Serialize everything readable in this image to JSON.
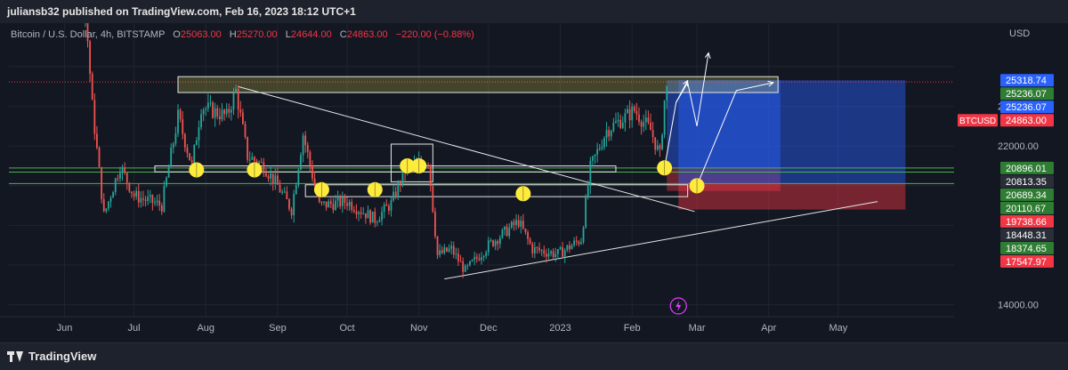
{
  "header": {
    "published_by": "juliansb32 published on TradingView.com, Feb 16, 2023 18:12 UTC+1"
  },
  "legend": {
    "symbol": "Bitcoin / U.S. Dollar, 4h, BITSTAMP",
    "open_label": "O",
    "open": "25063.00",
    "high_label": "H",
    "high": "25270.00",
    "low_label": "L",
    "low": "24644.00",
    "close_label": "C",
    "close": "24863.00",
    "change": "−220.00 (−0.88%)"
  },
  "footer": {
    "brand": "TradingView"
  },
  "chart_data": {
    "type": "line",
    "title": "Bitcoin / U.S. Dollar, 4h, BITSTAMP",
    "y_axis_label": "USD",
    "ylim": [
      13400,
      28200
    ],
    "y_ticks": [
      {
        "value": 14000,
        "label": "14000.00"
      },
      {
        "value": 22000,
        "label": "22000.00"
      },
      {
        "value": 24000,
        "label": "24000.00"
      }
    ],
    "x_ticks": [
      {
        "date": "2022-06-01",
        "label": "Jun"
      },
      {
        "date": "2022-07-01",
        "label": "Jul"
      },
      {
        "date": "2022-08-01",
        "label": "Aug"
      },
      {
        "date": "2022-09-01",
        "label": "Sep"
      },
      {
        "date": "2022-10-01",
        "label": "Oct"
      },
      {
        "date": "2022-11-01",
        "label": "Nov"
      },
      {
        "date": "2022-12-01",
        "label": "Dec"
      },
      {
        "date": "2023-01-01",
        "label": "2023"
      },
      {
        "date": "2023-02-01",
        "label": "Feb"
      },
      {
        "date": "2023-03-01",
        "label": "Mar"
      },
      {
        "date": "2023-04-01",
        "label": "Apr"
      },
      {
        "date": "2023-05-01",
        "label": "May"
      }
    ],
    "x_range": [
      "2022-05-08",
      "2023-06-20"
    ],
    "price_series": {
      "name": "BTCUSD",
      "points": [
        [
          "2022-05-10",
          31000
        ],
        [
          "2022-05-20",
          29500
        ],
        [
          "2022-06-01",
          29800
        ],
        [
          "2022-06-10",
          29000
        ],
        [
          "2022-06-13",
          24000
        ],
        [
          "2022-06-18",
          18500
        ],
        [
          "2022-06-25",
          21000
        ],
        [
          "2022-07-01",
          19500
        ],
        [
          "2022-07-13",
          19000
        ],
        [
          "2022-07-20",
          23500
        ],
        [
          "2022-07-26",
          21000
        ],
        [
          "2022-07-30",
          24000
        ],
        [
          "2022-08-10",
          23500
        ],
        [
          "2022-08-14",
          24800
        ],
        [
          "2022-08-19",
          21500
        ],
        [
          "2022-08-26",
          21000
        ],
        [
          "2022-09-01",
          20000
        ],
        [
          "2022-09-07",
          18800
        ],
        [
          "2022-09-12",
          22600
        ],
        [
          "2022-09-19",
          19000
        ],
        [
          "2022-10-01",
          19200
        ],
        [
          "2022-10-13",
          18300
        ],
        [
          "2022-10-20",
          19100
        ],
        [
          "2022-10-26",
          20800
        ],
        [
          "2022-11-05",
          21300
        ],
        [
          "2022-11-09",
          16500
        ],
        [
          "2022-11-15",
          16800
        ],
        [
          "2022-11-21",
          15700
        ],
        [
          "2022-12-01",
          17000
        ],
        [
          "2022-12-14",
          18200
        ],
        [
          "2022-12-20",
          16800
        ],
        [
          "2022-12-31",
          16550
        ],
        [
          "2023-01-10",
          17300
        ],
        [
          "2023-01-14",
          20900
        ],
        [
          "2023-01-21",
          22800
        ],
        [
          "2023-02-02",
          23800
        ],
        [
          "2023-02-09",
          22800
        ],
        [
          "2023-02-13",
          21500
        ],
        [
          "2023-02-15",
          24300
        ],
        [
          "2023-02-16",
          24863
        ]
      ]
    },
    "horizontal_levels": [
      {
        "value": 25236.07,
        "color": "#f23645",
        "style": "dotted"
      },
      {
        "value": 20896.01,
        "color": "#4caf50"
      },
      {
        "value": 20689.34,
        "color": "#4caf50"
      },
      {
        "value": 20110.67,
        "color": "#4caf50"
      }
    ],
    "price_labels": [
      {
        "value": 25318.74,
        "label": "25318.74",
        "color": "#2962ff"
      },
      {
        "value": 25236.07,
        "label": "25236.07",
        "color": "#2e7d32"
      },
      {
        "value": 25236.07,
        "label": "25236.07",
        "color": "#2962ff"
      },
      {
        "value": 24863.0,
        "label": "24863.00",
        "color": "#f23645",
        "tag": "BTCUSD"
      },
      {
        "value": 20896.01,
        "label": "20896.01",
        "color": "#2e7d32"
      },
      {
        "value": 20813.35,
        "label": "20813.35",
        "color": "#2a2e39"
      },
      {
        "value": 20689.34,
        "label": "20689.34",
        "color": "#2e7d32"
      },
      {
        "value": 20110.67,
        "label": "20110.67",
        "color": "#2e7d32"
      },
      {
        "value": 19738.66,
        "label": "19738.66",
        "color": "#f23645"
      },
      {
        "value": 18448.31,
        "label": "18448.31",
        "color": "#2a2e39"
      },
      {
        "value": 18374.65,
        "label": "18374.65",
        "color": "#2e7d32"
      },
      {
        "value": 17547.97,
        "label": "17547.97",
        "color": "#f23645"
      }
    ],
    "annotations": {
      "zones": [
        {
          "from": "2022-07-20",
          "to": "2023-04-05",
          "low": 24700,
          "high": 25500,
          "fill": "rgba(190,190,70,0.28)",
          "stroke": "#e6e6e6"
        },
        {
          "from": "2022-07-10",
          "to": "2023-01-25",
          "low": 20700,
          "high": 21000,
          "fill": "none",
          "stroke": "#e6e6e6"
        },
        {
          "from": "2022-10-20",
          "to": "2022-11-07",
          "low": 20200,
          "high": 22100,
          "fill": "none",
          "stroke": "#e6e6e6"
        },
        {
          "from": "2022-09-13",
          "to": "2023-02-25",
          "low": 19450,
          "high": 20050,
          "fill": "none",
          "stroke": "#e6e6e6"
        }
      ],
      "position_boxes": [
        {
          "from": "2023-02-16",
          "to": "2023-04-06",
          "low": 20896.01,
          "high": 25318.74,
          "fill": "rgba(41,98,255,0.45)"
        },
        {
          "from": "2023-02-16",
          "to": "2023-04-06",
          "low": 19738.66,
          "high": 20896.01,
          "fill": "rgba(242,54,69,0.40)"
        },
        {
          "from": "2023-02-21",
          "to": "2023-05-30",
          "low": 20110.67,
          "high": 25318.74,
          "fill": "rgba(41,98,255,0.45)"
        },
        {
          "from": "2023-02-21",
          "to": "2023-05-30",
          "low": 18800,
          "high": 20110.67,
          "fill": "rgba(242,54,69,0.45)"
        }
      ],
      "trend_lines": [
        {
          "from": [
            "2022-08-15",
            25000
          ],
          "to": [
            "2023-02-28",
            18700
          ]
        },
        {
          "from": [
            "2022-11-12",
            15300
          ],
          "to": [
            "2023-05-18",
            19200
          ]
        }
      ],
      "markers": [
        {
          "date": "2022-07-28",
          "value": 20800
        },
        {
          "date": "2022-08-22",
          "value": 20800
        },
        {
          "date": "2022-09-20",
          "value": 19800
        },
        {
          "date": "2022-10-13",
          "value": 19800
        },
        {
          "date": "2022-10-27",
          "value": 21000
        },
        {
          "date": "2022-11-01",
          "value": 21000
        },
        {
          "date": "2022-12-16",
          "value": 19600
        },
        {
          "date": "2023-02-15",
          "value": 20900
        },
        {
          "date": "2023-03-01",
          "value": 20000
        }
      ],
      "arrows": [
        [
          [
            "2023-02-15",
            20900
          ],
          [
            "2023-02-20",
            24200
          ],
          [
            "2023-02-25",
            25300
          ]
        ],
        [
          [
            "2023-02-20",
            24200
          ],
          [
            "2023-02-25",
            25200
          ],
          [
            "2023-03-01",
            23000
          ],
          [
            "2023-03-06",
            26700
          ]
        ],
        [
          [
            "2023-03-01",
            20000
          ],
          [
            "2023-03-18",
            24800
          ],
          [
            "2023-04-03",
            25200
          ]
        ]
      ]
    }
  }
}
